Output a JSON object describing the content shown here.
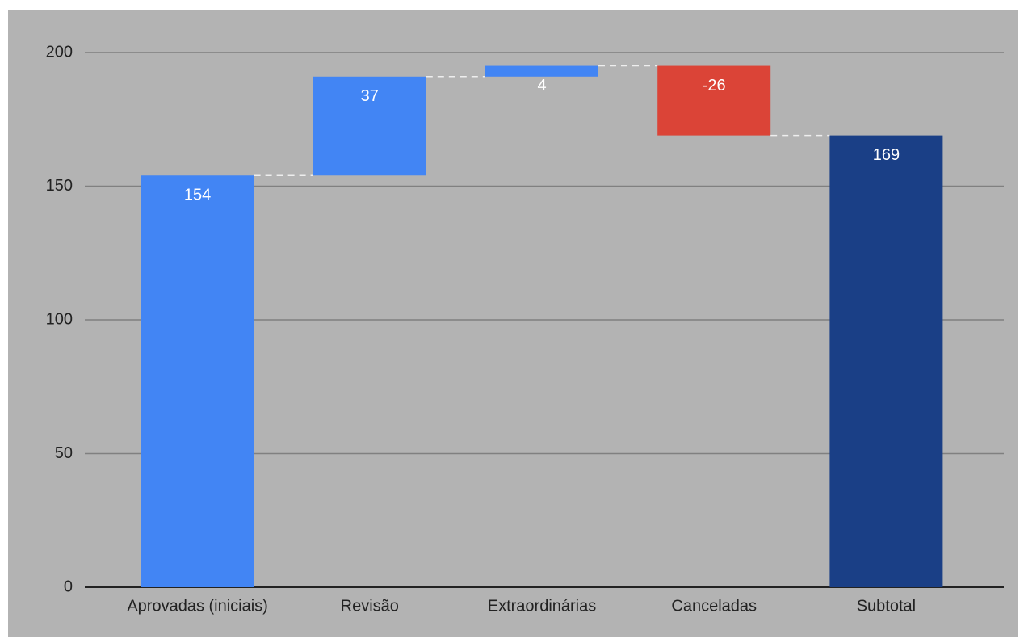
{
  "chart_data": {
    "type": "waterfall",
    "categories": [
      "Aprovadas (iniciais)",
      "Revisão",
      "Extraordinárias",
      "Canceladas",
      "Subtotal"
    ],
    "values": [
      154,
      37,
      4,
      -26,
      169
    ],
    "measure": [
      "absolute",
      "relative",
      "relative",
      "relative",
      "total"
    ],
    "colors": {
      "increase": "#4285f4",
      "decrease": "#db4437",
      "total": "#1a3f86"
    },
    "ylim": [
      0,
      200
    ],
    "yticks": [
      0,
      50,
      100,
      150,
      200
    ],
    "grid": true
  }
}
